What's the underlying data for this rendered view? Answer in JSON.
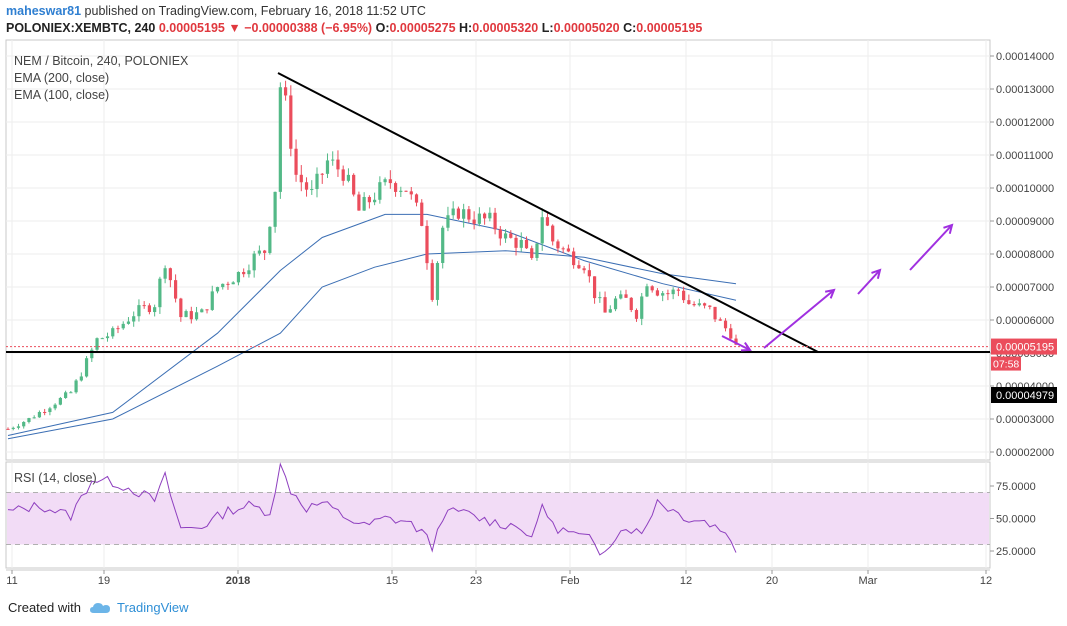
{
  "header": {
    "author": "maheswar81",
    "published": " published on TradingView.com, February 16, 2018 11:52 UTC",
    "symbol": "POLONIEX:XEMBTC, 240",
    "last": "0.00005195",
    "arrow": "▼",
    "change": "−0.00000388 (−6.95%)",
    "o_label": "O:",
    "o": "0.00005275",
    "h_label": "H:",
    "h": "0.00005320",
    "l_label": "L:",
    "l": "0.00005020",
    "c_label": "C:",
    "c": "0.00005195"
  },
  "legend": {
    "title": "NEM / Bitcoin, 240, POLONIEX",
    "ema200": "EMA (200, close)",
    "ema100": "EMA (100, close)",
    "rsi": "RSI (14, close)"
  },
  "footer": {
    "created_with": "Created with",
    "brand": "TradingView"
  },
  "colors": {
    "up": "#53b987",
    "down": "#eb4d5c",
    "ema": "#3c6fb4",
    "rsi": "#8e3fbf",
    "rsi_band": "#f2dcf6",
    "arrow": "#a030e0",
    "last_badge": "#eb4d5c",
    "black_badge": "#000000"
  },
  "chart_data": [
    {
      "type": "candlestick",
      "title": "NEM / Bitcoin, 240, POLONIEX",
      "x_ticks": [
        "11",
        "19",
        "2018",
        "15",
        "23",
        "Feb",
        "12",
        "20",
        "Mar",
        "12"
      ],
      "y_ticks": [
        "0.00002000",
        "0.00003000",
        "0.00004000",
        "0.00005000",
        "0.00006000",
        "0.00007000",
        "0.00008000",
        "0.00009000",
        "0.00010000",
        "0.00011000",
        "0.00012000",
        "0.00013000",
        "0.00014000"
      ],
      "ylim": [
        1.85e-05,
        1.45e-05
      ],
      "price_path": [
        [
          0,
          2.7e-05
        ],
        [
          4,
          3e-05
        ],
        [
          8,
          3.4e-05
        ],
        [
          12,
          3.8e-05
        ],
        [
          14,
          4.4e-05
        ],
        [
          17,
          5.4e-05
        ],
        [
          20,
          5.6e-05
        ],
        [
          24,
          6.2e-05
        ],
        [
          28,
          6.5e-05
        ],
        [
          30,
          7.8e-05
        ],
        [
          33,
          6.1e-05
        ],
        [
          37,
          6.2e-05
        ],
        [
          40,
          7e-05
        ],
        [
          44,
          7.4e-05
        ],
        [
          47,
          7.9e-05
        ],
        [
          49,
          8.1e-05
        ],
        [
          51,
          0.0001
        ],
        [
          52,
          0.000131
        ],
        [
          53,
          0.000125
        ],
        [
          55,
          0.000104
        ],
        [
          58,
          9.8e-05
        ],
        [
          61,
          0.000108
        ],
        [
          64,
          0.000105
        ],
        [
          67,
          9.3e-05
        ],
        [
          70,
          9.8e-05
        ],
        [
          73,
          0.000102
        ],
        [
          76,
          0.0001
        ],
        [
          79,
          9e-05
        ],
        [
          81,
          6.8e-05
        ],
        [
          83,
          8.8e-05
        ],
        [
          86,
          9.3e-05
        ],
        [
          89,
          9.1e-05
        ],
        [
          92,
          9e-05
        ],
        [
          95,
          8.5e-05
        ],
        [
          98,
          8.3e-05
        ],
        [
          100,
          7.7e-05
        ],
        [
          102,
          9.2e-05
        ],
        [
          104,
          8.4e-05
        ],
        [
          107,
          8e-05
        ],
        [
          110,
          7.7e-05
        ],
        [
          112,
          6.8e-05
        ],
        [
          114,
          6.2e-05
        ],
        [
          116,
          6.6e-05
        ],
        [
          118,
          6.6e-05
        ],
        [
          120,
          6.2e-05
        ],
        [
          122,
          7.2e-05
        ],
        [
          124,
          6.9e-05
        ],
        [
          126,
          6.8e-05
        ],
        [
          128,
          6.9e-05
        ],
        [
          130,
          6.5e-05
        ],
        [
          132,
          6.4e-05
        ],
        [
          134,
          6.3e-05
        ],
        [
          136,
          5.9e-05
        ],
        [
          138,
          5.6e-05
        ],
        [
          139,
          5.19e-05
        ]
      ],
      "ema200": [
        [
          0,
          2.4e-05
        ],
        [
          20,
          3e-05
        ],
        [
          40,
          4.6e-05
        ],
        [
          52,
          5.6e-05
        ],
        [
          60,
          7e-05
        ],
        [
          70,
          7.6e-05
        ],
        [
          80,
          8e-05
        ],
        [
          95,
          8.1e-05
        ],
        [
          110,
          7.9e-05
        ],
        [
          125,
          7.4e-05
        ],
        [
          139,
          7.1e-05
        ]
      ],
      "ema100": [
        [
          0,
          2.5e-05
        ],
        [
          20,
          3.2e-05
        ],
        [
          40,
          5.6e-05
        ],
        [
          52,
          7.5e-05
        ],
        [
          60,
          8.5e-05
        ],
        [
          72,
          9.2e-05
        ],
        [
          80,
          9.2e-05
        ],
        [
          95,
          8.7e-05
        ],
        [
          110,
          7.8e-05
        ],
        [
          125,
          7.1e-05
        ],
        [
          139,
          6.6e-05
        ]
      ],
      "last_price_label": "0.00005195",
      "countdown_label": "07:58",
      "support_label": "0.00004979",
      "support_level": 4.979e-05,
      "last_price": 5.195e-05
    },
    {
      "type": "line",
      "title": "RSI (14, close)",
      "y_ticks": [
        "75.0000",
        "50.0000",
        "25.0000"
      ],
      "ylim": [
        12,
        92
      ],
      "band": [
        30,
        70
      ],
      "values_path": [
        [
          0,
          55
        ],
        [
          6,
          60
        ],
        [
          12,
          52
        ],
        [
          16,
          80
        ],
        [
          20,
          78
        ],
        [
          24,
          72
        ],
        [
          28,
          64
        ],
        [
          30,
          82
        ],
        [
          33,
          42
        ],
        [
          37,
          44
        ],
        [
          42,
          56
        ],
        [
          46,
          60
        ],
        [
          50,
          55
        ],
        [
          52,
          90
        ],
        [
          54,
          72
        ],
        [
          57,
          58
        ],
        [
          60,
          62
        ],
        [
          64,
          52
        ],
        [
          68,
          44
        ],
        [
          72,
          50
        ],
        [
          76,
          48
        ],
        [
          79,
          40
        ],
        [
          81,
          28
        ],
        [
          83,
          52
        ],
        [
          86,
          56
        ],
        [
          90,
          50
        ],
        [
          94,
          46
        ],
        [
          98,
          44
        ],
        [
          100,
          32
        ],
        [
          102,
          62
        ],
        [
          104,
          44
        ],
        [
          108,
          38
        ],
        [
          111,
          34
        ],
        [
          113,
          24
        ],
        [
          115,
          32
        ],
        [
          118,
          44
        ],
        [
          121,
          38
        ],
        [
          124,
          64
        ],
        [
          127,
          56
        ],
        [
          130,
          50
        ],
        [
          133,
          48
        ],
        [
          136,
          42
        ],
        [
          138,
          36
        ],
        [
          139,
          22
        ]
      ]
    }
  ]
}
